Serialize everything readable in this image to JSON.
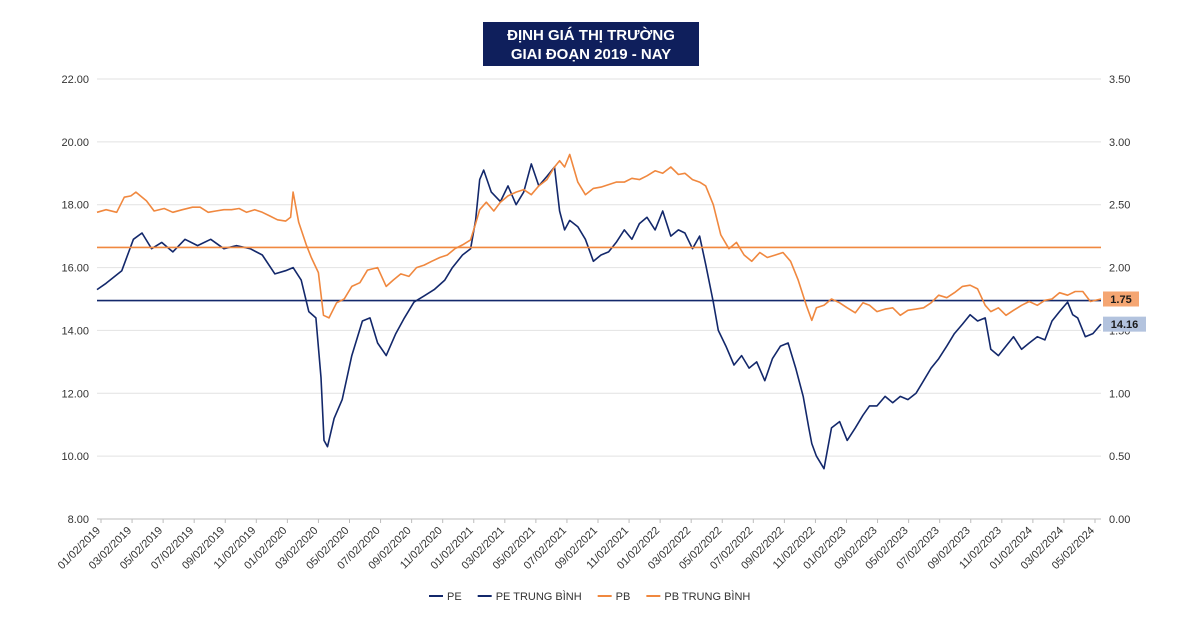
{
  "chart_data": {
    "type": "line",
    "title_lines": [
      "ĐỊNH GIÁ THỊ TRƯỜNG",
      "GIAI ĐOẠN 2019 - NAY"
    ],
    "y_left": {
      "min": 8,
      "max": 22,
      "ticks": [
        "8.00",
        "10.00",
        "12.00",
        "14.00",
        "16.00",
        "18.00",
        "20.00",
        "22.00"
      ]
    },
    "y_right": {
      "min": 0,
      "max": 3.5,
      "ticks": [
        "0.00",
        "0.50",
        "1.00",
        "1.50",
        "2.00",
        "2.50",
        "3.00",
        "3.50"
      ]
    },
    "x_range": [
      "2019-01-02",
      "2024-06-10"
    ],
    "x_ticks": [
      "01/02/2019",
      "03/02/2019",
      "05/02/2019",
      "07/02/2019",
      "09/02/2019",
      "11/02/2019",
      "01/02/2020",
      "03/02/2020",
      "05/02/2020",
      "07/02/2020",
      "09/02/2020",
      "11/02/2020",
      "01/02/2021",
      "03/02/2021",
      "05/02/2021",
      "07/02/2021",
      "09/02/2021",
      "11/02/2021",
      "01/02/2022",
      "03/02/2022",
      "05/02/2022",
      "07/02/2022",
      "09/02/2022",
      "11/02/2022",
      "01/02/2023",
      "03/02/2023",
      "05/02/2023",
      "07/02/2023",
      "09/02/2023",
      "11/02/2023",
      "01/02/2024",
      "03/02/2024",
      "05/02/2024"
    ],
    "series": [
      {
        "name": "PE",
        "axis": "left",
        "color": "#13286b",
        "x": [
          "2019-01-02",
          "2019-01-20",
          "2019-02-20",
          "2019-03-15",
          "2019-04-01",
          "2019-04-20",
          "2019-05-10",
          "2019-06-01",
          "2019-06-25",
          "2019-07-20",
          "2019-08-15",
          "2019-09-10",
          "2019-10-05",
          "2019-11-01",
          "2019-11-25",
          "2019-12-20",
          "2020-01-10",
          "2020-01-25",
          "2020-02-10",
          "2020-02-25",
          "2020-03-10",
          "2020-03-20",
          "2020-03-26",
          "2020-04-02",
          "2020-04-15",
          "2020-05-01",
          "2020-05-20",
          "2020-06-10",
          "2020-06-25",
          "2020-07-10",
          "2020-07-27",
          "2020-08-15",
          "2020-09-01",
          "2020-09-20",
          "2020-10-10",
          "2020-10-30",
          "2020-11-20",
          "2020-12-05",
          "2020-12-25",
          "2021-01-10",
          "2021-01-20",
          "2021-01-28",
          "2021-02-05",
          "2021-02-20",
          "2021-03-10",
          "2021-03-25",
          "2021-04-10",
          "2021-04-25",
          "2021-05-10",
          "2021-05-25",
          "2021-06-10",
          "2021-06-25",
          "2021-07-05",
          "2021-07-15",
          "2021-07-25",
          "2021-08-10",
          "2021-08-25",
          "2021-09-10",
          "2021-09-25",
          "2021-10-10",
          "2021-10-25",
          "2021-11-10",
          "2021-11-25",
          "2021-12-10",
          "2021-12-25",
          "2022-01-10",
          "2022-01-25",
          "2022-02-10",
          "2022-02-25",
          "2022-03-10",
          "2022-03-25",
          "2022-04-08",
          "2022-04-20",
          "2022-05-05",
          "2022-05-15",
          "2022-05-30",
          "2022-06-15",
          "2022-06-30",
          "2022-07-15",
          "2022-07-30",
          "2022-08-15",
          "2022-08-30",
          "2022-09-15",
          "2022-09-30",
          "2022-10-15",
          "2022-10-30",
          "2022-11-10",
          "2022-11-16",
          "2022-11-25",
          "2022-12-10",
          "2022-12-25",
          "2023-01-10",
          "2023-01-25",
          "2023-02-10",
          "2023-02-25",
          "2023-03-10",
          "2023-03-25",
          "2023-04-10",
          "2023-04-25",
          "2023-05-10",
          "2023-05-25",
          "2023-06-10",
          "2023-06-25",
          "2023-07-10",
          "2023-07-25",
          "2023-08-10",
          "2023-08-25",
          "2023-09-10",
          "2023-09-25",
          "2023-10-10",
          "2023-10-25",
          "2023-11-05",
          "2023-11-20",
          "2023-12-05",
          "2023-12-20",
          "2024-01-05",
          "2024-01-20",
          "2024-02-05",
          "2024-02-20",
          "2024-03-05",
          "2024-03-20",
          "2024-04-05",
          "2024-04-15",
          "2024-04-25",
          "2024-05-10",
          "2024-05-25",
          "2024-06-10"
        ],
        "values": [
          15.3,
          15.5,
          15.9,
          16.9,
          17.1,
          16.6,
          16.8,
          16.5,
          16.9,
          16.7,
          16.9,
          16.6,
          16.7,
          16.6,
          16.4,
          15.8,
          15.9,
          16.0,
          15.6,
          14.6,
          14.4,
          12.5,
          10.5,
          10.3,
          11.2,
          11.8,
          13.2,
          14.3,
          14.4,
          13.6,
          13.2,
          13.9,
          14.4,
          14.9,
          15.1,
          15.3,
          15.6,
          16.0,
          16.4,
          16.6,
          17.5,
          18.8,
          19.1,
          18.4,
          18.1,
          18.6,
          18.0,
          18.4,
          19.3,
          18.6,
          18.9,
          19.2,
          17.8,
          17.2,
          17.5,
          17.3,
          16.9,
          16.2,
          16.4,
          16.5,
          16.8,
          17.2,
          16.9,
          17.4,
          17.6,
          17.2,
          17.8,
          17.0,
          17.2,
          17.1,
          16.6,
          17.0,
          16.1,
          14.9,
          14.0,
          13.5,
          12.9,
          13.2,
          12.8,
          13.0,
          12.4,
          13.1,
          13.5,
          13.6,
          12.8,
          11.9,
          10.9,
          10.4,
          10.0,
          9.6,
          10.9,
          11.1,
          10.5,
          10.9,
          11.3,
          11.6,
          11.6,
          11.9,
          11.7,
          11.9,
          11.8,
          12.0,
          12.4,
          12.8,
          13.1,
          13.5,
          13.9,
          14.2,
          14.5,
          14.3,
          14.4,
          13.4,
          13.2,
          13.5,
          13.8,
          13.4,
          13.6,
          13.8,
          13.7,
          14.3,
          14.6,
          14.9,
          14.5,
          14.4,
          13.8,
          13.9,
          14.2
        ]
      },
      {
        "name": "PE TRUNG BÌNH",
        "axis": "left",
        "color": "#13286b",
        "constant": 14.95
      },
      {
        "name": "PB",
        "axis": "right",
        "color": "#f0883f",
        "x": [
          "2019-01-02",
          "2019-01-20",
          "2019-02-10",
          "2019-02-25",
          "2019-03-10",
          "2019-03-20",
          "2019-04-10",
          "2019-04-25",
          "2019-05-15",
          "2019-06-01",
          "2019-06-20",
          "2019-07-10",
          "2019-07-25",
          "2019-08-10",
          "2019-08-25",
          "2019-09-10",
          "2019-09-25",
          "2019-10-10",
          "2019-10-25",
          "2019-11-10",
          "2019-11-25",
          "2019-12-10",
          "2019-12-25",
          "2020-01-10",
          "2020-01-20",
          "2020-01-25",
          "2020-02-05",
          "2020-02-20",
          "2020-03-01",
          "2020-03-15",
          "2020-03-25",
          "2020-04-05",
          "2020-04-20",
          "2020-05-05",
          "2020-05-20",
          "2020-06-05",
          "2020-06-20",
          "2020-07-10",
          "2020-07-27",
          "2020-08-10",
          "2020-08-25",
          "2020-09-10",
          "2020-09-25",
          "2020-10-10",
          "2020-10-25",
          "2020-11-10",
          "2020-11-25",
          "2020-12-10",
          "2020-12-25",
          "2021-01-10",
          "2021-01-20",
          "2021-01-28",
          "2021-02-10",
          "2021-02-25",
          "2021-03-10",
          "2021-03-25",
          "2021-04-10",
          "2021-04-25",
          "2021-05-10",
          "2021-05-25",
          "2021-06-10",
          "2021-06-25",
          "2021-07-05",
          "2021-07-15",
          "2021-07-25",
          "2021-08-10",
          "2021-08-25",
          "2021-09-10",
          "2021-09-25",
          "2021-10-10",
          "2021-10-25",
          "2021-11-10",
          "2021-11-25",
          "2021-12-10",
          "2021-12-25",
          "2022-01-10",
          "2022-01-25",
          "2022-02-10",
          "2022-02-25",
          "2022-03-10",
          "2022-03-25",
          "2022-04-08",
          "2022-04-20",
          "2022-05-05",
          "2022-05-20",
          "2022-06-05",
          "2022-06-20",
          "2022-07-05",
          "2022-07-20",
          "2022-08-05",
          "2022-08-20",
          "2022-09-05",
          "2022-09-20",
          "2022-10-05",
          "2022-10-20",
          "2022-11-05",
          "2022-11-16",
          "2022-11-25",
          "2022-12-10",
          "2022-12-25",
          "2023-01-10",
          "2023-01-25",
          "2023-02-10",
          "2023-02-25",
          "2023-03-10",
          "2023-03-25",
          "2023-04-10",
          "2023-04-25",
          "2023-05-10",
          "2023-05-25",
          "2023-06-10",
          "2023-06-25",
          "2023-07-10",
          "2023-07-25",
          "2023-08-10",
          "2023-08-25",
          "2023-09-10",
          "2023-09-25",
          "2023-10-10",
          "2023-10-25",
          "2023-11-05",
          "2023-11-20",
          "2023-12-05",
          "2023-12-20",
          "2024-01-05",
          "2024-01-20",
          "2024-02-05",
          "2024-02-20",
          "2024-03-05",
          "2024-03-20",
          "2024-04-05",
          "2024-04-20",
          "2024-05-05",
          "2024-05-20",
          "2024-06-10"
        ],
        "values": [
          2.44,
          2.46,
          2.44,
          2.56,
          2.57,
          2.6,
          2.53,
          2.45,
          2.47,
          2.44,
          2.46,
          2.48,
          2.48,
          2.44,
          2.45,
          2.46,
          2.46,
          2.47,
          2.44,
          2.46,
          2.44,
          2.41,
          2.38,
          2.37,
          2.4,
          2.6,
          2.36,
          2.18,
          2.08,
          1.96,
          1.62,
          1.6,
          1.72,
          1.75,
          1.85,
          1.88,
          1.98,
          2.0,
          1.85,
          1.9,
          1.95,
          1.93,
          2.0,
          2.02,
          2.05,
          2.08,
          2.1,
          2.15,
          2.18,
          2.22,
          2.35,
          2.46,
          2.52,
          2.45,
          2.52,
          2.57,
          2.6,
          2.62,
          2.58,
          2.65,
          2.7,
          2.8,
          2.85,
          2.8,
          2.9,
          2.68,
          2.58,
          2.63,
          2.64,
          2.66,
          2.68,
          2.68,
          2.71,
          2.7,
          2.73,
          2.77,
          2.75,
          2.8,
          2.74,
          2.75,
          2.7,
          2.68,
          2.65,
          2.5,
          2.26,
          2.15,
          2.2,
          2.1,
          2.05,
          2.12,
          2.08,
          2.1,
          2.12,
          2.05,
          1.9,
          1.7,
          1.58,
          1.68,
          1.7,
          1.75,
          1.72,
          1.68,
          1.64,
          1.72,
          1.7,
          1.65,
          1.67,
          1.68,
          1.62,
          1.66,
          1.67,
          1.68,
          1.72,
          1.78,
          1.76,
          1.8,
          1.85,
          1.86,
          1.83,
          1.7,
          1.65,
          1.68,
          1.62,
          1.66,
          1.7,
          1.73,
          1.7,
          1.74,
          1.75,
          1.8,
          1.78,
          1.81,
          1.81,
          1.73,
          1.75
        ]
      },
      {
        "name": "PB TRUNG BÌNH",
        "axis": "right",
        "color": "#f0883f",
        "constant": 2.16
      }
    ],
    "annotations": [
      {
        "label": "1.75",
        "series": "PB",
        "bg": "#f5a672"
      },
      {
        "label": "14.16",
        "series": "PE",
        "bg": "#b3c3de"
      }
    ],
    "legend": [
      "PE",
      "PE TRUNG BÌNH",
      "PB",
      "PB TRUNG BÌNH"
    ],
    "legend_position": "bottom-center",
    "grid": true
  }
}
